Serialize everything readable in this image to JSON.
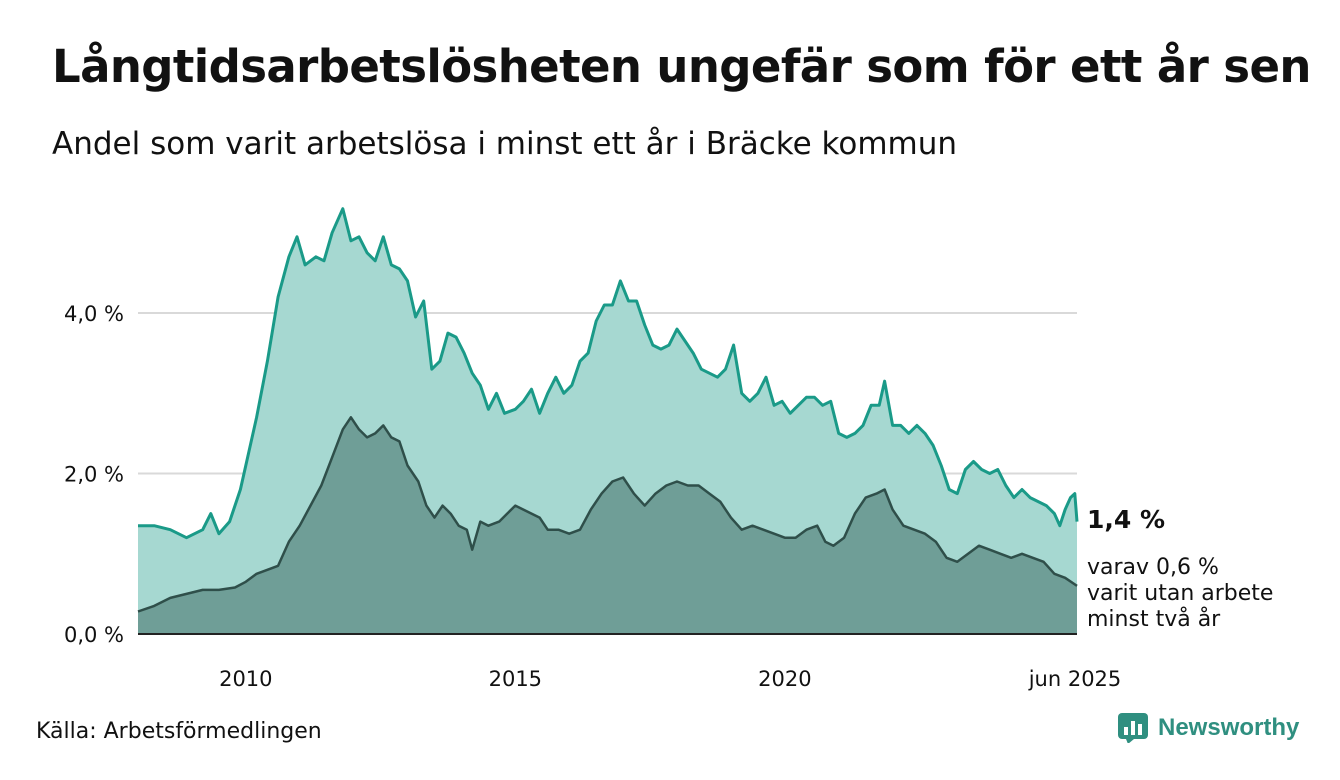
{
  "title": "Långtidsarbetslösheten ungefär som för ett år sen",
  "subtitle": "Andel som varit arbetslösa i minst ett år i Bräcke kommun",
  "source": "Källa: Arbetsförmedlingen",
  "brand": "Newsworthy",
  "colors": {
    "total_line": "#1a9a88",
    "total_fill": "#a6d8d1",
    "long_line": "#2f4f4a",
    "long_fill": "#6f9e97",
    "grid": "#d9d9d9",
    "baseline": "#222222",
    "brand": "#2f8f80"
  },
  "chart_data": {
    "type": "area",
    "x_unit": "year",
    "xlim": [
      2008.0,
      2025.42
    ],
    "ylim": [
      0,
      5.3
    ],
    "yticks": [
      0,
      2,
      4
    ],
    "ytick_labels": [
      "0,0 %",
      "2,0 %",
      "4,0 %"
    ],
    "xticks": [
      2010,
      2015,
      2020,
      2025.42
    ],
    "xtick_labels": [
      "2010",
      "2015",
      "2020",
      "jun 2025"
    ],
    "grid": "horizontal",
    "series": [
      {
        "key": "total",
        "end_label": "1,4 %",
        "points": [
          [
            2008.0,
            1.35
          ],
          [
            2008.3,
            1.35
          ],
          [
            2008.6,
            1.3
          ],
          [
            2008.9,
            1.2
          ],
          [
            2009.2,
            1.3
          ],
          [
            2009.35,
            1.5
          ],
          [
            2009.5,
            1.25
          ],
          [
            2009.7,
            1.4
          ],
          [
            2009.9,
            1.8
          ],
          [
            2010.0,
            2.1
          ],
          [
            2010.2,
            2.7
          ],
          [
            2010.4,
            3.4
          ],
          [
            2010.6,
            4.2
          ],
          [
            2010.8,
            4.7
          ],
          [
            2010.95,
            4.95
          ],
          [
            2011.1,
            4.6
          ],
          [
            2011.3,
            4.7
          ],
          [
            2011.45,
            4.65
          ],
          [
            2011.6,
            5.0
          ],
          [
            2011.8,
            5.3
          ],
          [
            2011.95,
            4.9
          ],
          [
            2012.1,
            4.95
          ],
          [
            2012.25,
            4.75
          ],
          [
            2012.4,
            4.65
          ],
          [
            2012.55,
            4.95
          ],
          [
            2012.7,
            4.6
          ],
          [
            2012.85,
            4.55
          ],
          [
            2013.0,
            4.4
          ],
          [
            2013.15,
            3.95
          ],
          [
            2013.3,
            4.15
          ],
          [
            2013.45,
            3.3
          ],
          [
            2013.6,
            3.4
          ],
          [
            2013.75,
            3.75
          ],
          [
            2013.9,
            3.7
          ],
          [
            2014.05,
            3.5
          ],
          [
            2014.2,
            3.25
          ],
          [
            2014.35,
            3.1
          ],
          [
            2014.5,
            2.8
          ],
          [
            2014.65,
            3.0
          ],
          [
            2014.8,
            2.75
          ],
          [
            2015.0,
            2.8
          ],
          [
            2015.15,
            2.9
          ],
          [
            2015.3,
            3.05
          ],
          [
            2015.45,
            2.75
          ],
          [
            2015.6,
            3.0
          ],
          [
            2015.75,
            3.2
          ],
          [
            2015.9,
            3.0
          ],
          [
            2016.05,
            3.1
          ],
          [
            2016.2,
            3.4
          ],
          [
            2016.35,
            3.5
          ],
          [
            2016.5,
            3.9
          ],
          [
            2016.65,
            4.1
          ],
          [
            2016.8,
            4.1
          ],
          [
            2016.95,
            4.4
          ],
          [
            2017.1,
            4.15
          ],
          [
            2017.25,
            4.15
          ],
          [
            2017.4,
            3.85
          ],
          [
            2017.55,
            3.6
          ],
          [
            2017.7,
            3.55
          ],
          [
            2017.85,
            3.6
          ],
          [
            2018.0,
            3.8
          ],
          [
            2018.15,
            3.65
          ],
          [
            2018.3,
            3.5
          ],
          [
            2018.45,
            3.3
          ],
          [
            2018.6,
            3.25
          ],
          [
            2018.75,
            3.2
          ],
          [
            2018.9,
            3.3
          ],
          [
            2019.05,
            3.6
          ],
          [
            2019.2,
            3.0
          ],
          [
            2019.35,
            2.9
          ],
          [
            2019.5,
            3.0
          ],
          [
            2019.65,
            3.2
          ],
          [
            2019.8,
            2.85
          ],
          [
            2019.95,
            2.9
          ],
          [
            2020.1,
            2.75
          ],
          [
            2020.25,
            2.85
          ],
          [
            2020.4,
            2.95
          ],
          [
            2020.55,
            2.95
          ],
          [
            2020.7,
            2.85
          ],
          [
            2020.85,
            2.9
          ],
          [
            2021.0,
            2.5
          ],
          [
            2021.15,
            2.45
          ],
          [
            2021.3,
            2.5
          ],
          [
            2021.45,
            2.6
          ],
          [
            2021.6,
            2.85
          ],
          [
            2021.75,
            2.85
          ],
          [
            2021.85,
            3.15
          ],
          [
            2022.0,
            2.6
          ],
          [
            2022.15,
            2.6
          ],
          [
            2022.3,
            2.5
          ],
          [
            2022.45,
            2.6
          ],
          [
            2022.6,
            2.5
          ],
          [
            2022.75,
            2.35
          ],
          [
            2022.9,
            2.1
          ],
          [
            2023.05,
            1.8
          ],
          [
            2023.2,
            1.75
          ],
          [
            2023.35,
            2.05
          ],
          [
            2023.5,
            2.15
          ],
          [
            2023.65,
            2.05
          ],
          [
            2023.8,
            2.0
          ],
          [
            2023.95,
            2.05
          ],
          [
            2024.1,
            1.85
          ],
          [
            2024.25,
            1.7
          ],
          [
            2024.4,
            1.8
          ],
          [
            2024.55,
            1.7
          ],
          [
            2024.7,
            1.65
          ],
          [
            2024.85,
            1.6
          ],
          [
            2025.0,
            1.5
          ],
          [
            2025.1,
            1.35
          ],
          [
            2025.2,
            1.55
          ],
          [
            2025.3,
            1.7
          ],
          [
            2025.38,
            1.75
          ],
          [
            2025.42,
            1.4
          ]
        ]
      },
      {
        "key": "long",
        "end_label": "varav 0,6 %\nvarit utan arbete\nminst två år",
        "points": [
          [
            2008.0,
            0.28
          ],
          [
            2008.3,
            0.35
          ],
          [
            2008.6,
            0.45
          ],
          [
            2008.9,
            0.5
          ],
          [
            2009.2,
            0.55
          ],
          [
            2009.5,
            0.55
          ],
          [
            2009.8,
            0.58
          ],
          [
            2010.0,
            0.65
          ],
          [
            2010.2,
            0.75
          ],
          [
            2010.4,
            0.8
          ],
          [
            2010.6,
            0.85
          ],
          [
            2010.8,
            1.15
          ],
          [
            2011.0,
            1.35
          ],
          [
            2011.2,
            1.6
          ],
          [
            2011.4,
            1.85
          ],
          [
            2011.6,
            2.2
          ],
          [
            2011.8,
            2.55
          ],
          [
            2011.95,
            2.7
          ],
          [
            2012.1,
            2.55
          ],
          [
            2012.25,
            2.45
          ],
          [
            2012.4,
            2.5
          ],
          [
            2012.55,
            2.6
          ],
          [
            2012.7,
            2.45
          ],
          [
            2012.85,
            2.4
          ],
          [
            2013.0,
            2.1
          ],
          [
            2013.2,
            1.9
          ],
          [
            2013.35,
            1.6
          ],
          [
            2013.5,
            1.45
          ],
          [
            2013.65,
            1.6
          ],
          [
            2013.8,
            1.5
          ],
          [
            2013.95,
            1.35
          ],
          [
            2014.1,
            1.3
          ],
          [
            2014.2,
            1.05
          ],
          [
            2014.35,
            1.4
          ],
          [
            2014.5,
            1.35
          ],
          [
            2014.7,
            1.4
          ],
          [
            2014.85,
            1.5
          ],
          [
            2015.0,
            1.6
          ],
          [
            2015.15,
            1.55
          ],
          [
            2015.3,
            1.5
          ],
          [
            2015.45,
            1.45
          ],
          [
            2015.6,
            1.3
          ],
          [
            2015.8,
            1.3
          ],
          [
            2016.0,
            1.25
          ],
          [
            2016.2,
            1.3
          ],
          [
            2016.4,
            1.55
          ],
          [
            2016.6,
            1.75
          ],
          [
            2016.8,
            1.9
          ],
          [
            2017.0,
            1.95
          ],
          [
            2017.2,
            1.75
          ],
          [
            2017.4,
            1.6
          ],
          [
            2017.6,
            1.75
          ],
          [
            2017.8,
            1.85
          ],
          [
            2018.0,
            1.9
          ],
          [
            2018.2,
            1.85
          ],
          [
            2018.4,
            1.85
          ],
          [
            2018.6,
            1.75
          ],
          [
            2018.8,
            1.65
          ],
          [
            2019.0,
            1.45
          ],
          [
            2019.2,
            1.3
          ],
          [
            2019.4,
            1.35
          ],
          [
            2019.6,
            1.3
          ],
          [
            2019.8,
            1.25
          ],
          [
            2020.0,
            1.2
          ],
          [
            2020.2,
            1.2
          ],
          [
            2020.4,
            1.3
          ],
          [
            2020.6,
            1.35
          ],
          [
            2020.75,
            1.15
          ],
          [
            2020.9,
            1.1
          ],
          [
            2021.1,
            1.2
          ],
          [
            2021.3,
            1.5
          ],
          [
            2021.5,
            1.7
          ],
          [
            2021.7,
            1.75
          ],
          [
            2021.85,
            1.8
          ],
          [
            2022.0,
            1.55
          ],
          [
            2022.2,
            1.35
          ],
          [
            2022.4,
            1.3
          ],
          [
            2022.6,
            1.25
          ],
          [
            2022.8,
            1.15
          ],
          [
            2023.0,
            0.95
          ],
          [
            2023.2,
            0.9
          ],
          [
            2023.4,
            1.0
          ],
          [
            2023.6,
            1.1
          ],
          [
            2023.8,
            1.05
          ],
          [
            2024.0,
            1.0
          ],
          [
            2024.2,
            0.95
          ],
          [
            2024.4,
            1.0
          ],
          [
            2024.6,
            0.95
          ],
          [
            2024.8,
            0.9
          ],
          [
            2025.0,
            0.75
          ],
          [
            2025.2,
            0.7
          ],
          [
            2025.42,
            0.6
          ]
        ]
      }
    ]
  }
}
